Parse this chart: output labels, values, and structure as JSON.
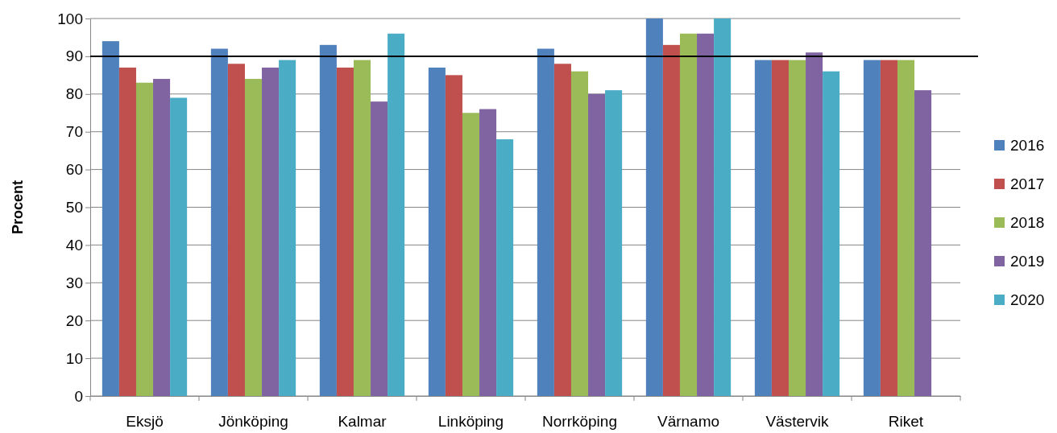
{
  "chart_data": {
    "type": "bar",
    "ylabel": "Procent",
    "categories": [
      "Eksjö",
      "Jönköping",
      "Kalmar",
      "Linköping",
      "Norrköping",
      "Värnamo",
      "Västervik",
      "Riket"
    ],
    "series": [
      {
        "name": "2016",
        "color": "#4f81bd",
        "values": [
          94,
          92,
          93,
          87,
          92,
          100,
          89,
          89
        ]
      },
      {
        "name": "2017",
        "color": "#c0504d",
        "values": [
          87,
          88,
          87,
          85,
          88,
          93,
          89,
          89
        ]
      },
      {
        "name": "2018",
        "color": "#9bbb59",
        "values": [
          83,
          84,
          89,
          75,
          86,
          96,
          89,
          89
        ]
      },
      {
        "name": "2019",
        "color": "#8064a2",
        "values": [
          84,
          87,
          78,
          76,
          80,
          96,
          91,
          81
        ]
      },
      {
        "name": "2020",
        "color": "#4bacc6",
        "values": [
          79,
          89,
          96,
          68,
          81,
          100,
          86,
          null
        ]
      }
    ],
    "ylim": [
      0,
      100
    ],
    "yticks": [
      0,
      10,
      20,
      30,
      40,
      50,
      60,
      70,
      80,
      90,
      100
    ],
    "grid": "y",
    "legend": "right",
    "ref_lines": [
      {
        "axis": "y",
        "value": 90,
        "color": "#000000"
      }
    ]
  }
}
